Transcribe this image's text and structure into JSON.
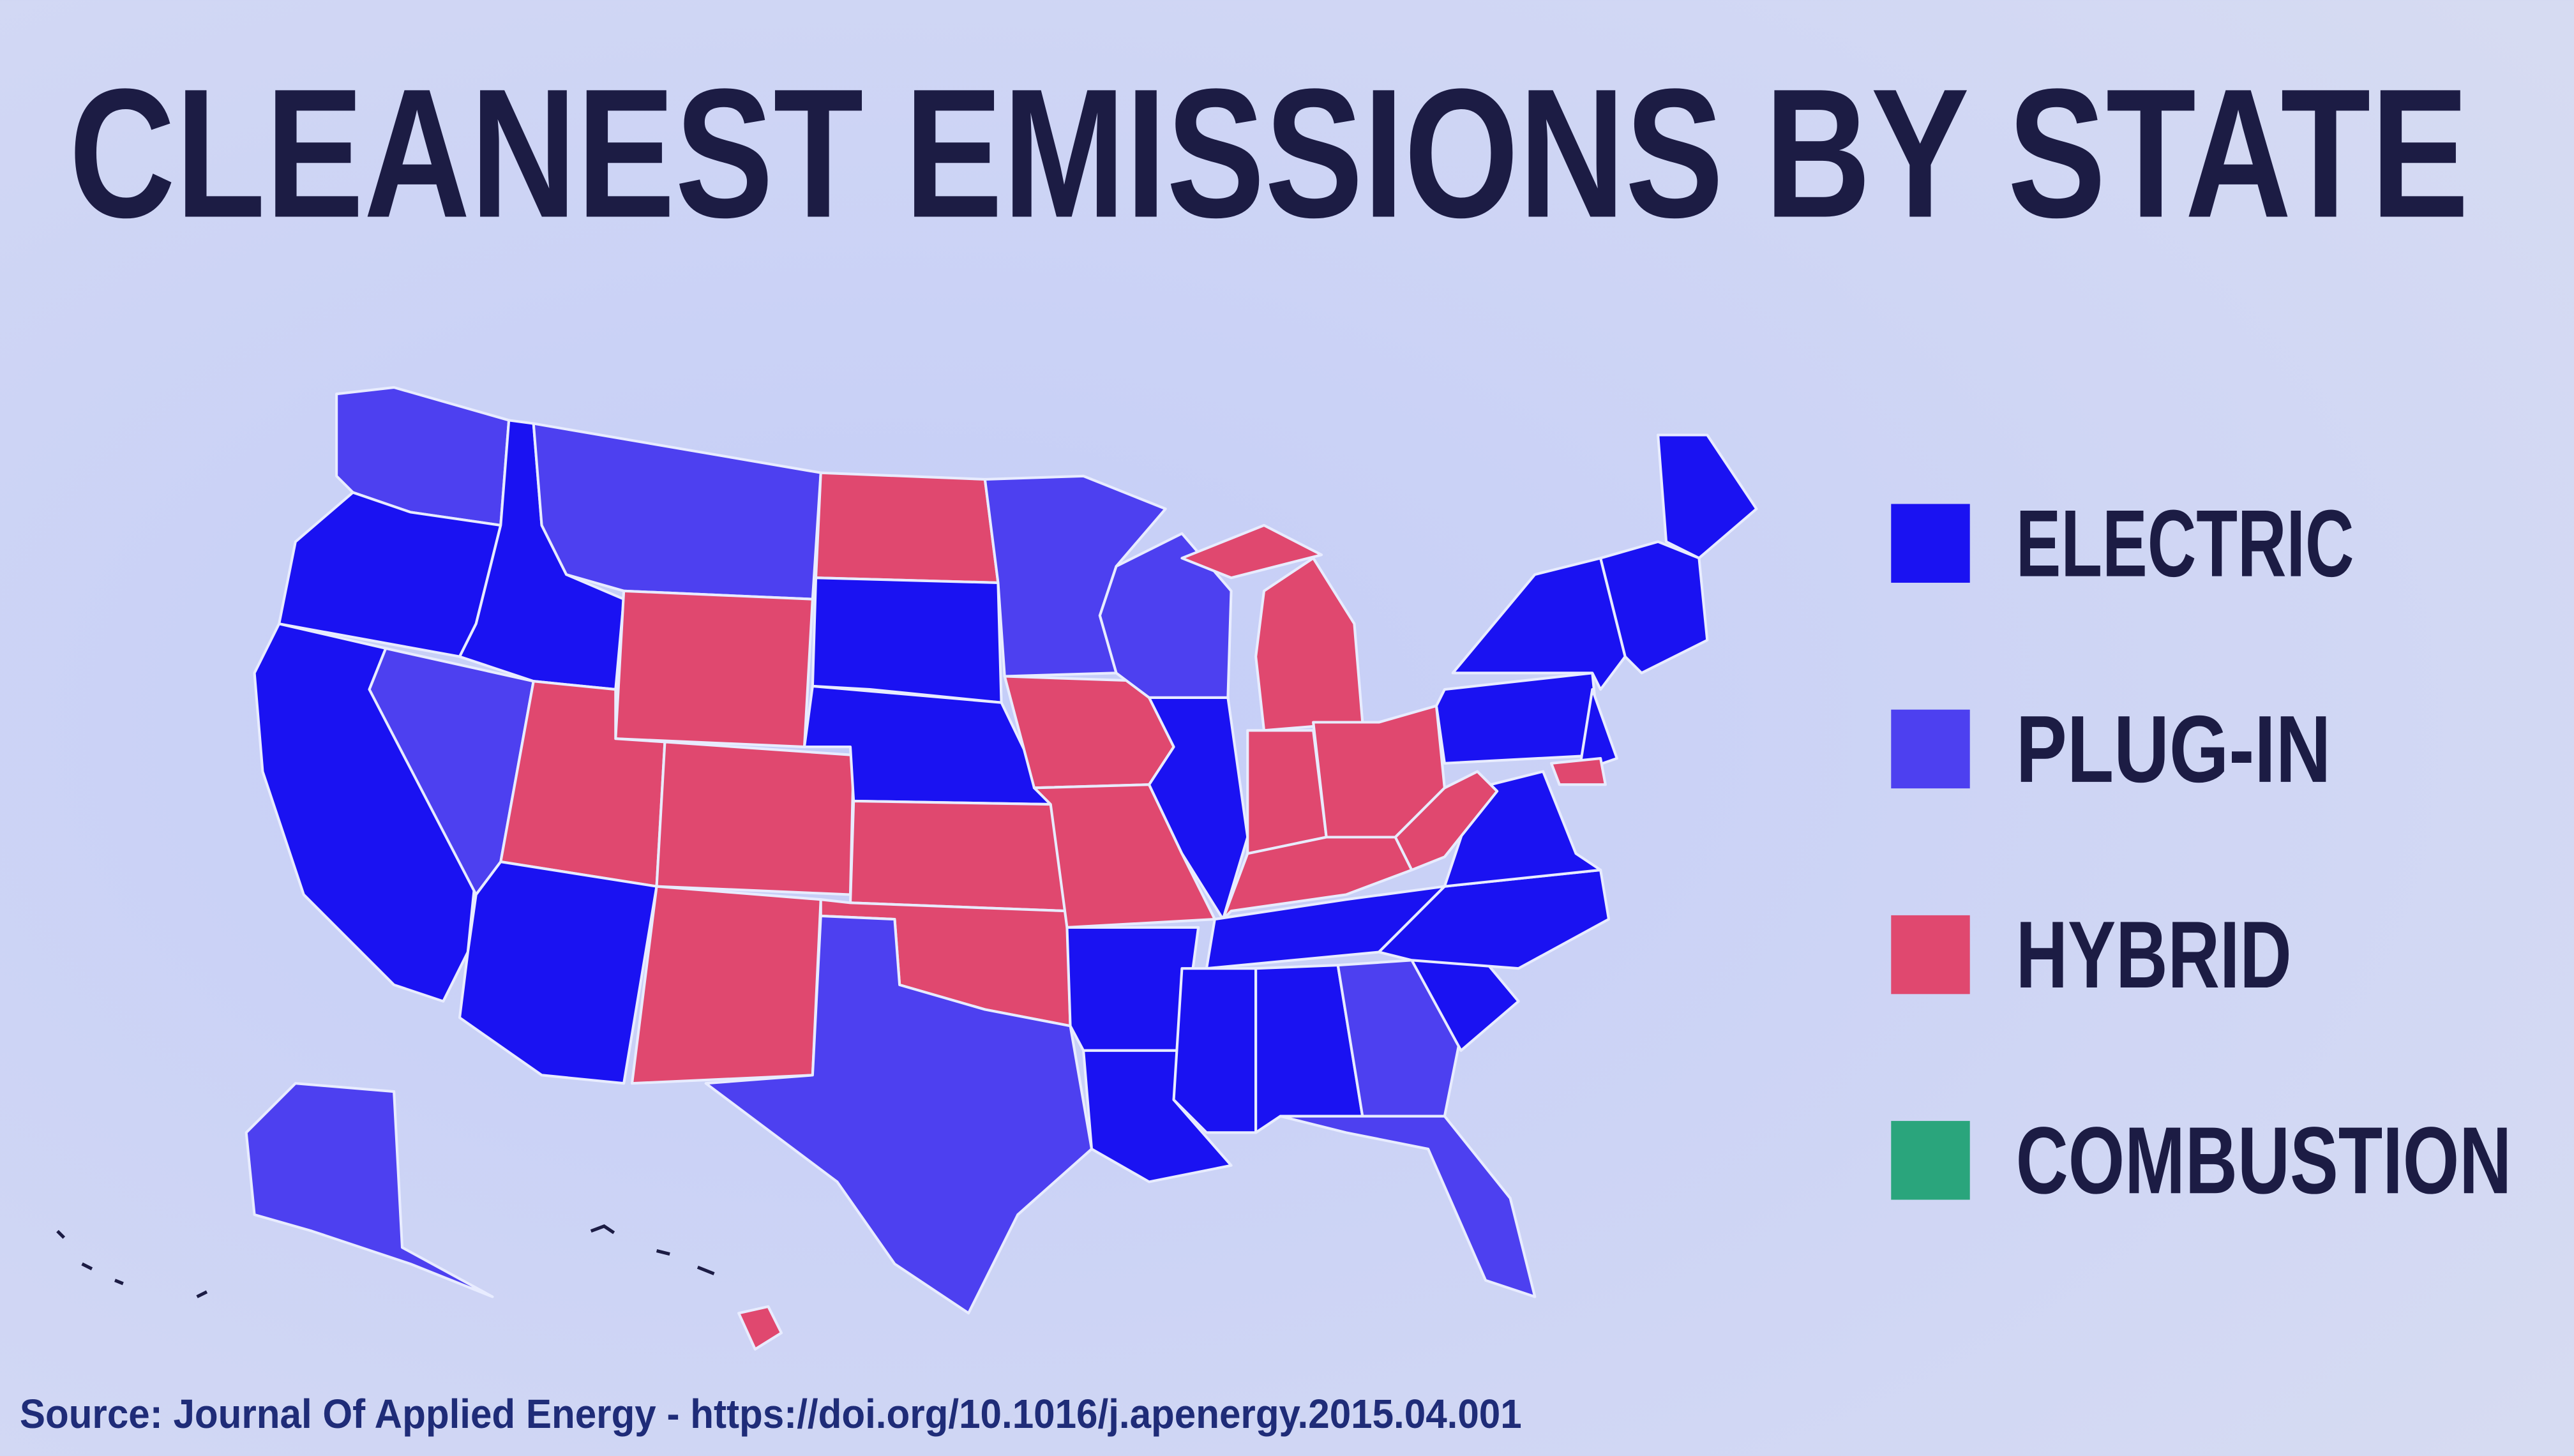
{
  "header": {
    "title": "CLEANEST EMISSIONS BY STATE"
  },
  "legend": {
    "items": [
      {
        "label": "ELECTRIC",
        "color": "#1a12f2"
      },
      {
        "label": "PLUG-IN",
        "color": "#4d40f0"
      },
      {
        "label": "HYBRID",
        "color": "#e0486f"
      },
      {
        "label": "COMBUSTION",
        "color": "#2aa57c"
      }
    ]
  },
  "footer": {
    "source": "Source: Journal Of Applied Energy - https://doi.org/10.1016/j.apenergy.2015.04.001"
  }
}
